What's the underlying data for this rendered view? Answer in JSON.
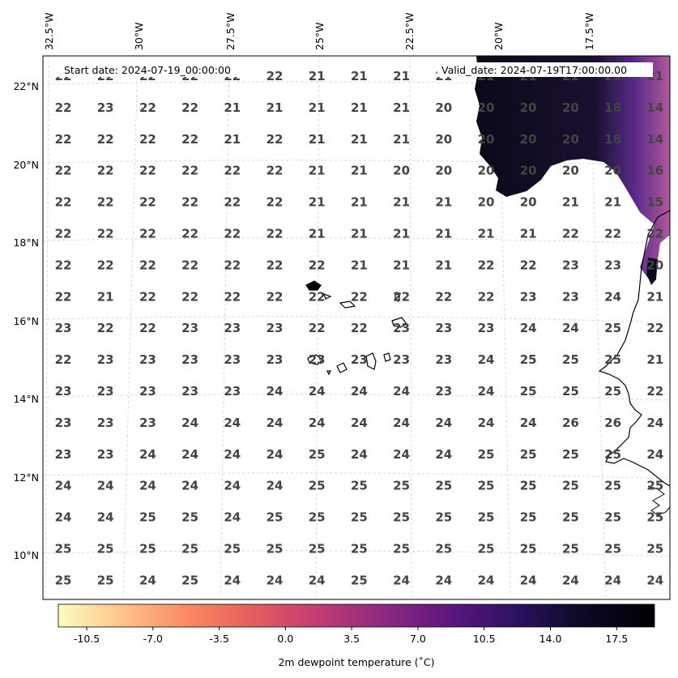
{
  "header": {
    "start_date": "Start date: 2024-07-19_00:00:00",
    "valid_date": "Valid_date: 2024-07-19T17:00:00.00"
  },
  "longitude_labels": [
    "32.5°W",
    "30°W",
    "27.5°W",
    "25°W",
    "22.5°W",
    "20°W",
    "17.5°W"
  ],
  "latitude_labels": [
    "22°N",
    "20°N",
    "18°N",
    "16°N",
    "14°N",
    "12°N",
    "10°N"
  ],
  "grid_values": [
    [
      "22",
      "22",
      "22",
      "22",
      "22",
      "22",
      "21",
      "21",
      "21",
      "21",
      "21",
      "21",
      "21",
      "21",
      "21"
    ],
    [
      "22",
      "23",
      "22",
      "22",
      "21",
      "21",
      "21",
      "21",
      "21",
      "20",
      "20",
      "20",
      "20",
      "18",
      "14"
    ],
    [
      "22",
      "22",
      "22",
      "22",
      "21",
      "22",
      "21",
      "21",
      "21",
      "20",
      "20",
      "20",
      "20",
      "18",
      "14"
    ],
    [
      "22",
      "22",
      "22",
      "22",
      "22",
      "22",
      "21",
      "21",
      "20",
      "20",
      "20",
      "20",
      "20",
      "20",
      "16"
    ],
    [
      "22",
      "22",
      "22",
      "22",
      "22",
      "22",
      "21",
      "21",
      "21",
      "21",
      "20",
      "20",
      "21",
      "21",
      "15"
    ],
    [
      "22",
      "22",
      "22",
      "22",
      "22",
      "22",
      "21",
      "21",
      "21",
      "21",
      "21",
      "21",
      "22",
      "22",
      "22"
    ],
    [
      "22",
      "22",
      "22",
      "22",
      "22",
      "22",
      "22",
      "21",
      "21",
      "21",
      "22",
      "22",
      "23",
      "23",
      "20"
    ],
    [
      "22",
      "21",
      "22",
      "22",
      "22",
      "22",
      "22",
      "22",
      "22",
      "22",
      "22",
      "23",
      "23",
      "24",
      "21"
    ],
    [
      "23",
      "22",
      "22",
      "23",
      "23",
      "23",
      "22",
      "22",
      "23",
      "23",
      "23",
      "24",
      "24",
      "25",
      "22"
    ],
    [
      "22",
      "23",
      "23",
      "23",
      "23",
      "23",
      "23",
      "23",
      "23",
      "23",
      "24",
      "25",
      "25",
      "25",
      "21"
    ],
    [
      "23",
      "23",
      "23",
      "23",
      "23",
      "24",
      "24",
      "24",
      "24",
      "23",
      "24",
      "25",
      "25",
      "25",
      "22"
    ],
    [
      "23",
      "23",
      "23",
      "24",
      "24",
      "24",
      "24",
      "24",
      "24",
      "24",
      "24",
      "24",
      "26",
      "26",
      "24"
    ],
    [
      "23",
      "23",
      "24",
      "24",
      "24",
      "24",
      "25",
      "24",
      "24",
      "24",
      "25",
      "25",
      "25",
      "25",
      "24"
    ],
    [
      "24",
      "24",
      "24",
      "24",
      "24",
      "24",
      "25",
      "25",
      "25",
      "25",
      "25",
      "25",
      "25",
      "25",
      "25"
    ],
    [
      "24",
      "24",
      "25",
      "25",
      "24",
      "25",
      "25",
      "25",
      "25",
      "25",
      "25",
      "25",
      "25",
      "25",
      "25"
    ],
    [
      "25",
      "25",
      "25",
      "25",
      "25",
      "25",
      "25",
      "25",
      "25",
      "25",
      "25",
      "25",
      "25",
      "25",
      "25"
    ],
    [
      "25",
      "25",
      "24",
      "25",
      "24",
      "24",
      "24",
      "25",
      "24",
      "24",
      "24",
      "24",
      "24",
      "24",
      "24"
    ]
  ],
  "colorbar": {
    "ticks": [
      "-10.5",
      "-7.0",
      "-3.5",
      "0.0",
      "3.5",
      "7.0",
      "10.5",
      "14.0",
      "17.5"
    ],
    "label": "2m dewpoint temperature (˚C)",
    "colormap": "magma_r",
    "range": [
      -12,
      19.5
    ],
    "colors": [
      "#fcfdbf",
      "#fec287",
      "#fb8761",
      "#e55c5e",
      "#c13a73",
      "#8c2981",
      "#5b167e",
      "#2c115f",
      "#0b0924",
      "#000004"
    ]
  },
  "map_colors": {
    "land_dark": "#0b0918",
    "land_purple": "#5a2a8a",
    "land_magenta": "#b0589a",
    "coastline": "#000000",
    "gridline": "#d0d0d0"
  }
}
